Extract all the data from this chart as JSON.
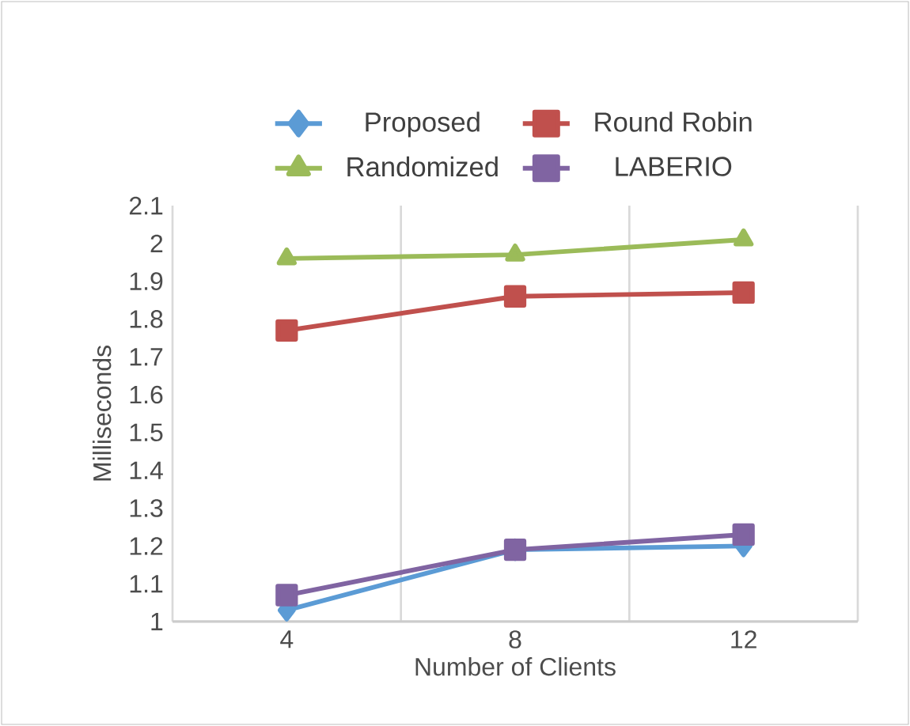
{
  "chart_data": {
    "type": "line",
    "xlabel": "Number of Clients",
    "ylabel": "Milliseconds",
    "categories": [
      "4",
      "8",
      "12"
    ],
    "series": [
      {
        "name": "Proposed",
        "color": "#5b9bd5",
        "marker": "diamond",
        "values": [
          1.03,
          1.19,
          1.2
        ]
      },
      {
        "name": "Round Robin",
        "color": "#c0504d",
        "marker": "square",
        "values": [
          1.77,
          1.86,
          1.87
        ]
      },
      {
        "name": "Randomized",
        "color": "#9bbb59",
        "marker": "triangle",
        "values": [
          1.96,
          1.97,
          2.01
        ]
      },
      {
        "name": "LABERIO",
        "color": "#8064a2",
        "marker": "square",
        "values": [
          1.07,
          1.19,
          1.23
        ]
      }
    ],
    "ylim": [
      1,
      2.1
    ],
    "yticks": [
      1,
      1.1,
      1.2,
      1.3,
      1.4,
      1.5,
      1.6,
      1.7,
      1.8,
      1.9,
      2,
      2.1
    ],
    "grid": "x",
    "legend": "top",
    "line_style": "solid"
  }
}
